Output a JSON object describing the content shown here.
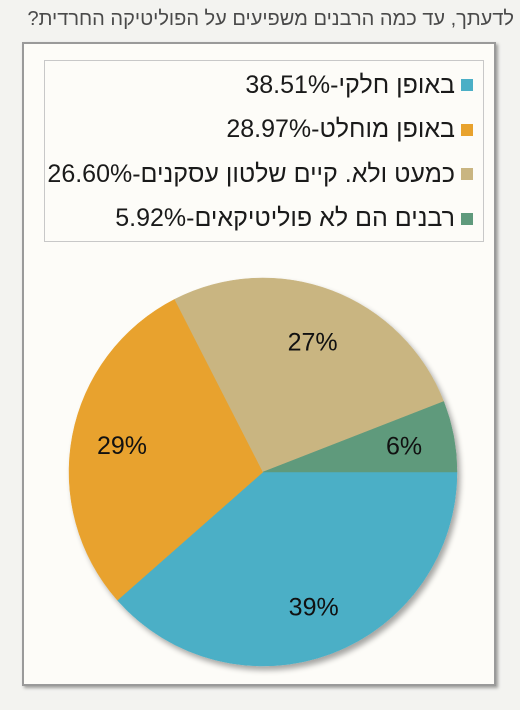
{
  "question": "לדעתך, עד כמה הרבנים משפיעים על הפוליטיקה החרדית?",
  "chart_data": {
    "type": "pie",
    "title": "",
    "legend_position": "top",
    "slices": [
      {
        "legend": "באופן חלקי-38.51%",
        "value": 38.51,
        "label": "39%",
        "color": "#4bafc6"
      },
      {
        "legend": "באופן מוחלט-28.97%",
        "value": 28.97,
        "label": "29%",
        "color": "#e8a22d"
      },
      {
        "legend": "כמעט ולא. קיים שלטון עסקנים-26.60%",
        "value": 26.6,
        "label": "27%",
        "color": "#c9b581"
      },
      {
        "legend": "רבנים הם לא פוליטיקאים-5.92%",
        "value": 5.92,
        "label": "6%",
        "color": "#5f9a7c"
      }
    ]
  }
}
